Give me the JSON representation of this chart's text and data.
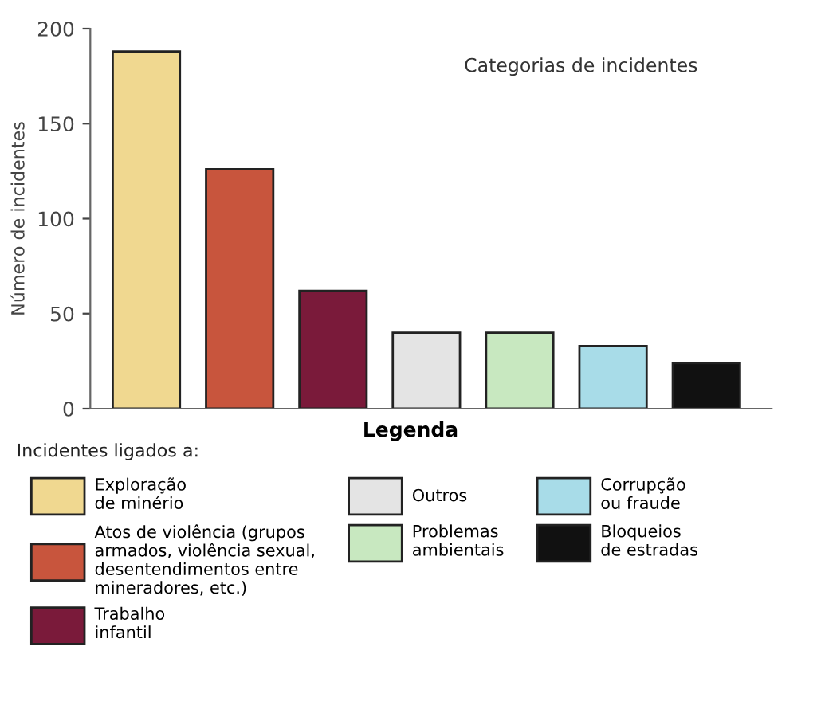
{
  "chart_data": {
    "type": "bar",
    "ylabel": "Número de incidentes",
    "legend_title": "Legenda",
    "annotations": [
      "Categorias de incidentes",
      "Incidentes ligados a:"
    ],
    "categories": [
      null,
      null,
      null,
      null,
      null,
      null,
      null
    ],
    "series": [
      {
        "name": "Exploração\nde minério",
        "color": "#f0d890",
        "values": [
          188,
          null,
          null,
          null,
          null,
          null,
          null
        ]
      },
      {
        "name": "Atos de violência (grupos\narmados, violência sexual,\ndesentendimentos entre\nmineradores, etc.)",
        "color": "#c8553d",
        "values": [
          null,
          126,
          null,
          null,
          null,
          null,
          null
        ]
      },
      {
        "name": "Trabalho\ninfantil",
        "color": "#7a1a3a",
        "values": [
          null,
          null,
          62,
          null,
          null,
          null,
          null
        ]
      },
      {
        "name": "Outros",
        "color": "#e4e4e4",
        "values": [
          null,
          null,
          null,
          40,
          null,
          null,
          null
        ]
      },
      {
        "name": "Problemas\nambientais",
        "color": "#c8e8c0",
        "values": [
          null,
          null,
          null,
          null,
          40,
          null,
          null
        ]
      },
      {
        "name": "Corrupção\nou fraude",
        "color": "#a8dce8",
        "values": [
          null,
          null,
          null,
          null,
          null,
          33,
          null
        ]
      },
      {
        "name": "Bloqueios\nde estradas",
        "color": "#111111",
        "values": [
          null,
          null,
          null,
          null,
          null,
          null,
          24
        ]
      }
    ],
    "ylim": [
      0,
      200
    ],
    "yticks": [
      0,
      50,
      100,
      150,
      200
    ],
    "grid": false,
    "legend": "bottom"
  }
}
